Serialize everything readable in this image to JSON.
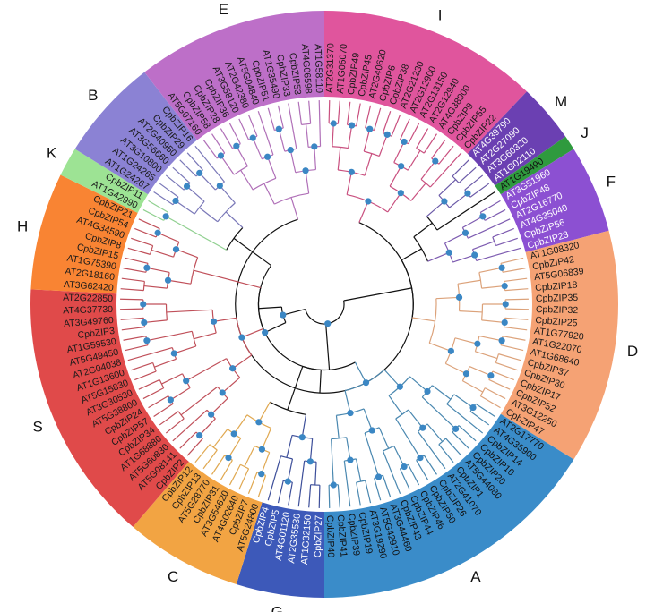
{
  "bootstrap_dot_color": "#3b87c4",
  "backbone_color": "#111111",
  "clade_topology": [
    [
      [
        [
          "E",
          "I"
        ],
        [
          "B",
          "K"
        ]
      ],
      [
        "H",
        "S"
      ]
    ],
    [
      [
        "C",
        "G"
      ],
      "A"
    ],
    [
      "D",
      [
        "F",
        [
          "J",
          "M"
        ]
      ]
    ]
  ],
  "clades": [
    {
      "name": "I",
      "color": "#e0559d",
      "line": "#c9507f",
      "text_color": "#1a1a1a",
      "leaves": [
        "AT2G31370",
        "AT1G06070",
        "CpbZIP49",
        "CpbZIP45",
        "AT2G40620",
        "CpbZIP6",
        "CpbZIP38",
        "AT2G21230",
        "AT2G12900",
        "AT2G13150",
        "AT2G12940",
        "AT4G38900",
        "CpbZIP9",
        "CpbZIP55",
        "CpbZIP22"
      ]
    },
    {
      "name": "M",
      "color": "#6b40b2",
      "line": "#6b5aa8",
      "text_color": "#ffffff",
      "leaves": [
        "AT4G39790",
        "AT2G27090",
        "AT3G60320",
        "AT1G02110"
      ]
    },
    {
      "name": "J",
      "color": "#2f9a3e",
      "line": "#2f9a3e",
      "text_color": "#111111",
      "leaves": [
        "AT1G19490"
      ]
    },
    {
      "name": "F",
      "color": "#8c50d2",
      "line": "#7d5bb0",
      "text_color": "#ffffff",
      "leaves": [
        "AT3G51960",
        "CpbZIP48",
        "AT2G16770",
        "AT4G35040",
        "CpbZIP56",
        "CpbZIP23"
      ]
    },
    {
      "name": "D",
      "color": "#f5a274",
      "line": "#dca27a",
      "text_color": "#1a1a1a",
      "leaves": [
        "AT1G08320",
        "CpbZIP42",
        "AT5G06839",
        "CpbZIP18",
        "CpbZIP35",
        "CpbZIP32",
        "CpbZIP25",
        "AT1G77920",
        "AT1G22070",
        "AT1G68640",
        "CpbZIP37",
        "CpbZIP30",
        "CpbZIP17",
        "CpbZIP52",
        "AT3G12250",
        "CpbZIP47"
      ]
    },
    {
      "name": "A",
      "color": "#3a8cc9",
      "line": "#4a88b0",
      "text_color": "#111111",
      "leaves": [
        "AT2G17770",
        "AT4G35900",
        "CpbZIP14",
        "CpbZIP10",
        "CpbZIP20",
        "AT5G44080",
        "CpbZIP1",
        "AT2G41070",
        "CpbZIP26",
        "CpbZIP50",
        "CpbZIP46",
        "CpbZIP44",
        "CpbZIP43",
        "AT3G44460",
        "AT5G42910",
        "AT3G19290",
        "CpbZIP19",
        "CpbZIP39",
        "CpbZIP41",
        "CpbZIP40"
      ]
    },
    {
      "name": "G",
      "color": "#3d59b9",
      "line": "#3d4f9a",
      "text_color": "#ffffff",
      "leaves": [
        "CpbZIP27",
        "AT1G32150",
        "AT2G35530",
        "AT4G01120",
        "CpbZIP5",
        "CpbZIP4"
      ]
    },
    {
      "name": "C",
      "color": "#f2a443",
      "line": "#e0a850",
      "text_color": "#1a1a1a",
      "leaves": [
        "AT5G24800",
        "CpbZIP7",
        "AT4G02640",
        "AT3G54620",
        "CpbZIP31",
        "AT5G28770",
        "CpbZIP13",
        "CpbZIP12"
      ]
    },
    {
      "name": "S",
      "color": "#e04a4a",
      "line": "#c0505a",
      "text_color": "#1a1a1a",
      "leaves": [
        "CpbZIP2",
        "AT5G08141",
        "AT5G60830",
        "AT1G68880",
        "CpbZIP34",
        "CpbZIP57",
        "CpbZIP24",
        "AT5G38800",
        "AT3G30530",
        "AT5G15830",
        "AT1G13600",
        "AT2G04038",
        "AT5G49450",
        "AT1G59530",
        "CpbZIP3",
        "AT3G49760",
        "AT4G37730",
        "AT2G22850"
      ]
    },
    {
      "name": "H",
      "color": "#f98433",
      "line": "#c0505a",
      "text_color": "#1a1a1a",
      "leaves": [
        "AT3G62420",
        "AT2G18160",
        "AT1G75390",
        "CpbZIP15",
        "CpbZIP8",
        "AT4G34590",
        "CpbZIP54",
        "CpbZIP21"
      ]
    },
    {
      "name": "K",
      "color": "#9de394",
      "line": "#90d090",
      "text_color": "#1a1a1a",
      "leaves": [
        "AT1G42990",
        "CpbZIP11"
      ]
    },
    {
      "name": "B",
      "color": "#8b82d4",
      "line": "#7a78b8",
      "text_color": "#1a1a1a",
      "leaves": [
        "AT1G24267",
        "AT1G24265",
        "AT3G10800",
        "AT3G56660",
        "AT2G40950",
        "CpbZIP29",
        "CpbZIP16"
      ]
    },
    {
      "name": "E",
      "color": "#bd6fc8",
      "line": "#b070b8",
      "text_color": "#1a1a1a",
      "leaves": [
        "AT5G07160",
        "CpbZIP58",
        "CpbZIP28",
        "CpbZIP36",
        "AT3G58120",
        "AT2G42380",
        "AT5G04840",
        "CpbZIP51",
        "AT1G35490",
        "CpbZIP33",
        "CpbZIP53",
        "AT4G06598",
        "AT1G58110"
      ]
    }
  ]
}
